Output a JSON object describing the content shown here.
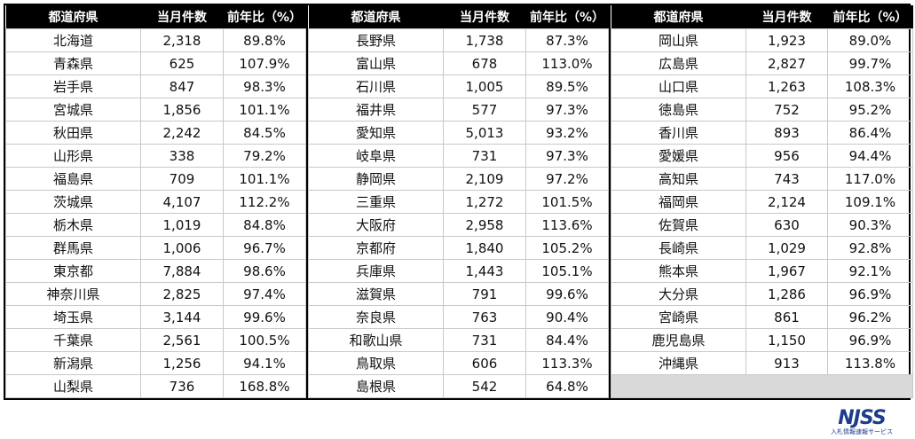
{
  "headers": {
    "prefecture": "都道府県",
    "count": "当月件数",
    "ratio": "前年比（%）"
  },
  "blocks": [
    {
      "rows": [
        {
          "name": "北海道",
          "count": "2,318",
          "ratio": "89.8%"
        },
        {
          "name": "青森県",
          "count": "625",
          "ratio": "107.9%"
        },
        {
          "name": "岩手県",
          "count": "847",
          "ratio": "98.3%"
        },
        {
          "name": "宮城県",
          "count": "1,856",
          "ratio": "101.1%"
        },
        {
          "name": "秋田県",
          "count": "2,242",
          "ratio": "84.5%"
        },
        {
          "name": "山形県",
          "count": "338",
          "ratio": "79.2%"
        },
        {
          "name": "福島県",
          "count": "709",
          "ratio": "101.1%"
        },
        {
          "name": "茨城県",
          "count": "4,107",
          "ratio": "112.2%"
        },
        {
          "name": "栃木県",
          "count": "1,019",
          "ratio": "84.8%"
        },
        {
          "name": "群馬県",
          "count": "1,006",
          "ratio": "96.7%"
        },
        {
          "name": "東京都",
          "count": "7,884",
          "ratio": "98.6%"
        },
        {
          "name": "神奈川県",
          "count": "2,825",
          "ratio": "97.4%"
        },
        {
          "name": "埼玉県",
          "count": "3,144",
          "ratio": "99.6%"
        },
        {
          "name": "千葉県",
          "count": "2,561",
          "ratio": "100.5%"
        },
        {
          "name": "新潟県",
          "count": "1,256",
          "ratio": "94.1%"
        },
        {
          "name": "山梨県",
          "count": "736",
          "ratio": "168.8%"
        }
      ]
    },
    {
      "rows": [
        {
          "name": "長野県",
          "count": "1,738",
          "ratio": "87.3%"
        },
        {
          "name": "富山県",
          "count": "678",
          "ratio": "113.0%"
        },
        {
          "name": "石川県",
          "count": "1,005",
          "ratio": "89.5%"
        },
        {
          "name": "福井県",
          "count": "577",
          "ratio": "97.3%"
        },
        {
          "name": "愛知県",
          "count": "5,013",
          "ratio": "93.2%"
        },
        {
          "name": "岐阜県",
          "count": "731",
          "ratio": "97.3%"
        },
        {
          "name": "静岡県",
          "count": "2,109",
          "ratio": "97.2%"
        },
        {
          "name": "三重県",
          "count": "1,272",
          "ratio": "101.5%"
        },
        {
          "name": "大阪府",
          "count": "2,958",
          "ratio": "113.6%"
        },
        {
          "name": "京都府",
          "count": "1,840",
          "ratio": "105.2%"
        },
        {
          "name": "兵庫県",
          "count": "1,443",
          "ratio": "105.1%"
        },
        {
          "name": "滋賀県",
          "count": "791",
          "ratio": "99.6%"
        },
        {
          "name": "奈良県",
          "count": "763",
          "ratio": "90.4%"
        },
        {
          "name": "和歌山県",
          "count": "731",
          "ratio": "84.4%"
        },
        {
          "name": "鳥取県",
          "count": "606",
          "ratio": "113.3%"
        },
        {
          "name": "島根県",
          "count": "542",
          "ratio": "64.8%"
        }
      ]
    },
    {
      "rows": [
        {
          "name": "岡山県",
          "count": "1,923",
          "ratio": "89.0%"
        },
        {
          "name": "広島県",
          "count": "2,827",
          "ratio": "99.7%"
        },
        {
          "name": "山口県",
          "count": "1,263",
          "ratio": "108.3%"
        },
        {
          "name": "徳島県",
          "count": "752",
          "ratio": "95.2%"
        },
        {
          "name": "香川県",
          "count": "893",
          "ratio": "86.4%"
        },
        {
          "name": "愛媛県",
          "count": "956",
          "ratio": "94.4%"
        },
        {
          "name": "高知県",
          "count": "743",
          "ratio": "117.0%"
        },
        {
          "name": "福岡県",
          "count": "2,124",
          "ratio": "109.1%"
        },
        {
          "name": "佐賀県",
          "count": "630",
          "ratio": "90.3%"
        },
        {
          "name": "長崎県",
          "count": "1,029",
          "ratio": "92.8%"
        },
        {
          "name": "熊本県",
          "count": "1,967",
          "ratio": "92.1%"
        },
        {
          "name": "大分県",
          "count": "1,286",
          "ratio": "96.9%"
        },
        {
          "name": "宮崎県",
          "count": "861",
          "ratio": "96.2%"
        },
        {
          "name": "鹿児島県",
          "count": "1,150",
          "ratio": "96.9%"
        },
        {
          "name": "沖縄県",
          "count": "913",
          "ratio": "113.8%"
        }
      ]
    }
  ],
  "logo": {
    "mark": "NJSS",
    "sub": "入札情報速報サービス"
  }
}
